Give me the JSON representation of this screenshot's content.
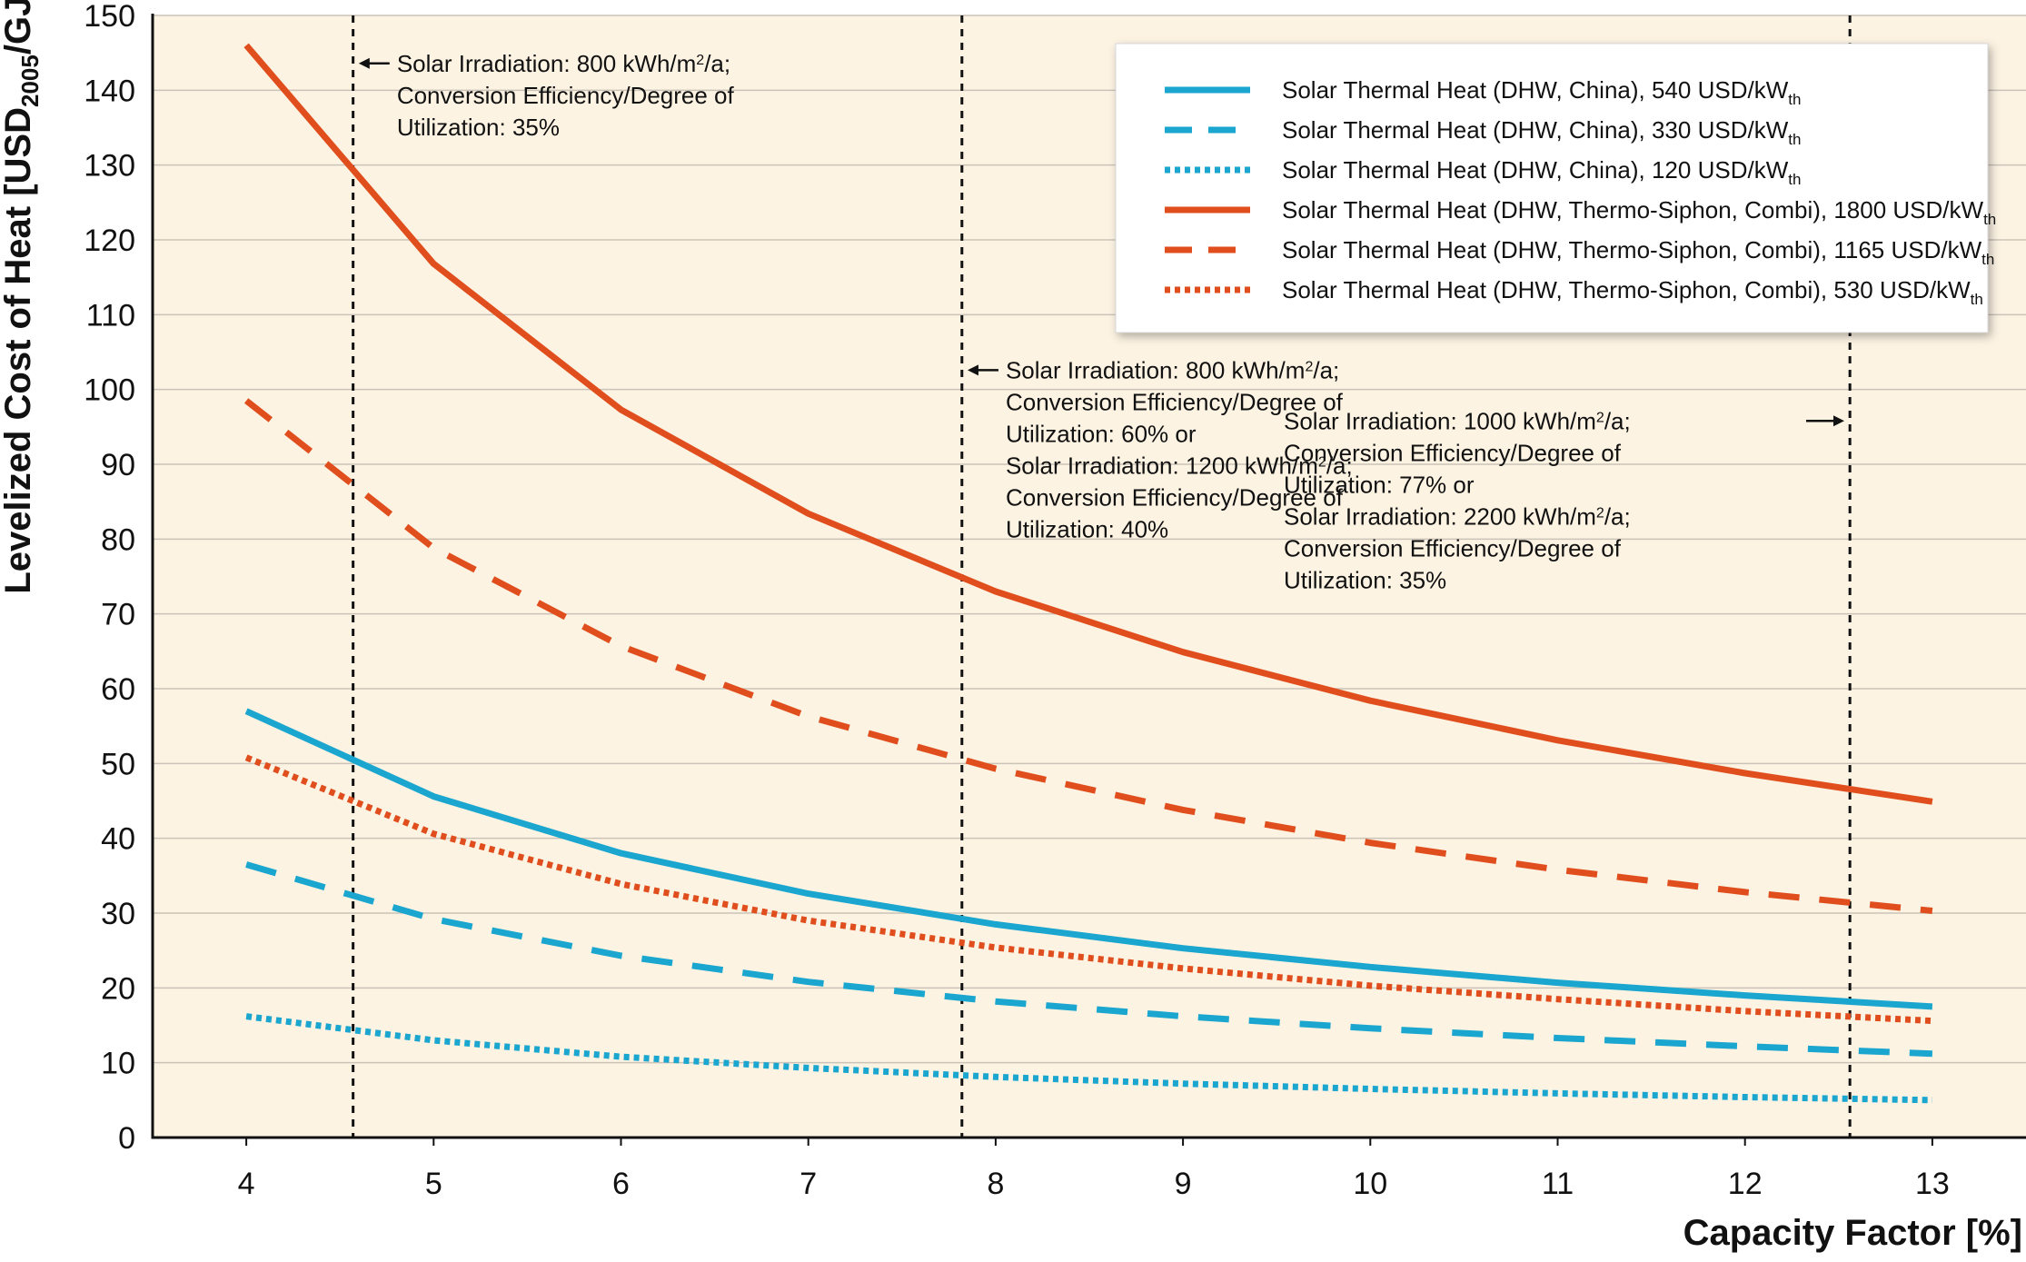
{
  "colors": {
    "plot_background": "#fdf3e3",
    "gridline": "#c9c3b8",
    "blue": "#1aa6cf",
    "orange": "#e04e1d",
    "axis": "#111111"
  },
  "chart_data": {
    "type": "line",
    "title": "",
    "xlabel": "Capacity Factor [%]",
    "ylabel_parts": [
      "Levelized Cost of Heat [USD",
      "2005",
      "/GJ]"
    ],
    "xlim": [
      3.5,
      13.5
    ],
    "ylim": [
      0,
      150
    ],
    "x_ticks": [
      4,
      5,
      6,
      7,
      8,
      9,
      10,
      11,
      12,
      13
    ],
    "y_ticks": [
      0,
      10,
      20,
      30,
      40,
      50,
      60,
      70,
      80,
      90,
      100,
      110,
      120,
      130,
      140,
      150
    ],
    "grid": "horizontal",
    "legend_position": "top-right",
    "x": [
      4,
      5,
      6,
      7,
      8,
      9,
      10,
      11,
      12,
      13
    ],
    "series": [
      {
        "name": "Solar Thermal Heat (DHW, China), 540 USD/kW",
        "name_sub": "th",
        "color": "blue",
        "style": "solid",
        "values": [
          57.0,
          45.6,
          38.0,
          32.6,
          28.5,
          25.3,
          22.8,
          20.7,
          19.0,
          17.5
        ]
      },
      {
        "name": "Solar Thermal Heat (DHW, China), 330 USD/kW",
        "name_sub": "th",
        "color": "blue",
        "style": "dashed",
        "values": [
          36.5,
          29.2,
          24.3,
          20.8,
          18.2,
          16.2,
          14.6,
          13.3,
          12.2,
          11.2
        ]
      },
      {
        "name": "Solar Thermal Heat (DHW, China), 120 USD/kW",
        "name_sub": "th",
        "color": "blue",
        "style": "dotted",
        "values": [
          16.2,
          13.0,
          10.8,
          9.3,
          8.1,
          7.2,
          6.5,
          5.9,
          5.4,
          5.0
        ]
      },
      {
        "name": "Solar Thermal Heat (DHW, Thermo-Siphon, Combi), 1800 USD/kW",
        "name_sub": "th",
        "color": "orange",
        "style": "solid",
        "values": [
          146.0,
          116.8,
          97.3,
          83.4,
          73.0,
          64.9,
          58.4,
          53.1,
          48.7,
          44.9
        ]
      },
      {
        "name": "Solar Thermal Heat (DHW, Thermo-Siphon, Combi), 1165 USD/kW",
        "name_sub": "th",
        "color": "orange",
        "style": "dashed",
        "values": [
          98.5,
          78.8,
          65.7,
          56.3,
          49.3,
          43.8,
          39.4,
          35.8,
          32.8,
          30.3
        ]
      },
      {
        "name": "Solar Thermal Heat (DHW, Thermo-Siphon, Combi), 530 USD/kW",
        "name_sub": "th",
        "color": "orange",
        "style": "dotted",
        "values": [
          50.8,
          40.6,
          33.9,
          29.0,
          25.4,
          22.6,
          20.3,
          18.5,
          16.9,
          15.6
        ]
      }
    ],
    "reference_lines": [
      {
        "x": 4.57,
        "style": "dashed"
      },
      {
        "x": 7.82,
        "style": "dashed"
      },
      {
        "x": 12.56,
        "style": "dashed"
      }
    ],
    "annotations": [
      {
        "x": 4.6,
        "y": 142.5,
        "arrow": "left",
        "lines": [
          [
            {
              "t": "Solar Irradiation: 800 kWh/m"
            },
            {
              "t": "2",
              "sup": true
            },
            {
              "t": "/a;"
            }
          ],
          [
            {
              "t": "Conversion Efficiency/Degree of"
            }
          ],
          [
            {
              "t": "Utilization: 35%"
            }
          ]
        ]
      },
      {
        "x": 7.85,
        "y": 101.5,
        "arrow": "left",
        "lines": [
          [
            {
              "t": "Solar Irradiation: 800 kWh/m"
            },
            {
              "t": "2",
              "sup": true
            },
            {
              "t": "/a;"
            }
          ],
          [
            {
              "t": "Conversion Efficiency/Degree of"
            }
          ],
          [
            {
              "t": "Utilization: 60% or"
            }
          ],
          [
            {
              "t": "Solar Irradiation: 1200 kWh/m"
            },
            {
              "t": "2",
              "sup": true
            },
            {
              "t": "/a;"
            }
          ],
          [
            {
              "t": "Conversion Efficiency/Degree of"
            }
          ],
          [
            {
              "t": "Utilization: 40%"
            }
          ]
        ]
      },
      {
        "x": 12.53,
        "y": 94.7,
        "arrow": "right",
        "lines": [
          [
            {
              "t": "Solar Irradiation: 1000 kWh/m"
            },
            {
              "t": "2",
              "sup": true
            },
            {
              "t": "/a;"
            }
          ],
          [
            {
              "t": "Conversion Efficiency/Degree of"
            }
          ],
          [
            {
              "t": "Utilization: 77% or"
            }
          ],
          [
            {
              "t": "Solar Irradiation: 2200 kWh/m"
            },
            {
              "t": "2",
              "sup": true
            },
            {
              "t": "/a;"
            }
          ],
          [
            {
              "t": "Conversion Efficiency/Degree of"
            }
          ],
          [
            {
              "t": "Utilization: 35%"
            }
          ]
        ]
      }
    ]
  }
}
